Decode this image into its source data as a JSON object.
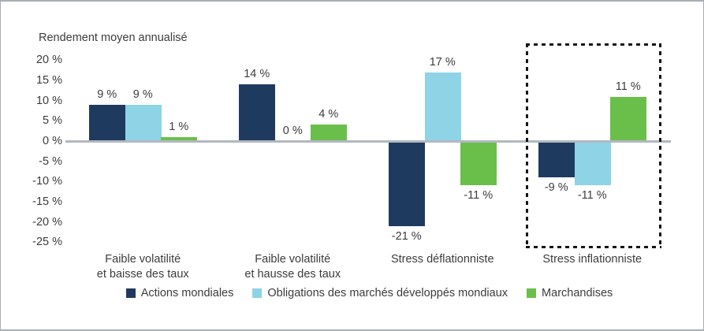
{
  "chart_data": {
    "type": "bar",
    "title": "Rendement moyen annualisé",
    "categories": [
      "Faible volatilité et baisse des taux",
      "Faible volatilité et hausse des taux",
      "Stress déflationniste",
      "Stress inflationniste"
    ],
    "category_label_lines": [
      [
        "Faible volatilité",
        "et baisse des taux"
      ],
      [
        "Faible volatilité",
        "et hausse des taux"
      ],
      [
        "Stress déflationniste"
      ],
      [
        "Stress inflationniste"
      ]
    ],
    "series": [
      {
        "name": "Actions mondiales",
        "color": "#1f3a5f",
        "values": [
          9,
          14,
          -21,
          -9
        ],
        "value_labels": [
          "9 %",
          "14 %",
          "-21 %",
          "-9 %"
        ]
      },
      {
        "name": "Obligations des marchés développés mondiaux",
        "color": "#8ed3e6",
        "values": [
          9,
          0,
          17,
          -11
        ],
        "value_labels": [
          "9 %",
          "0 %",
          "17 %",
          "-11 %"
        ]
      },
      {
        "name": "Marchandises",
        "color": "#6abf4a",
        "values": [
          1,
          4,
          -11,
          11
        ],
        "value_labels": [
          "1 %",
          "4 %",
          "-11 %",
          "11 %"
        ]
      }
    ],
    "ylim": [
      -25,
      20
    ],
    "ytick_step": 5,
    "y_tick_values": [
      20,
      15,
      10,
      5,
      0,
      -5,
      -10,
      -15,
      -20,
      -25
    ],
    "y_tick_labels": [
      "20 %",
      "15 %",
      "10 %",
      "5 %",
      "0 %",
      "-5 %",
      "-10 %",
      "-15 %",
      "-20 %",
      "-25 %"
    ],
    "grid": false,
    "legend_position": "bottom",
    "highlight_category_index": 3,
    "axis_color": "#b2b8bf",
    "highlight_border_color": "#151515",
    "text_color": "#3c3c3c"
  }
}
